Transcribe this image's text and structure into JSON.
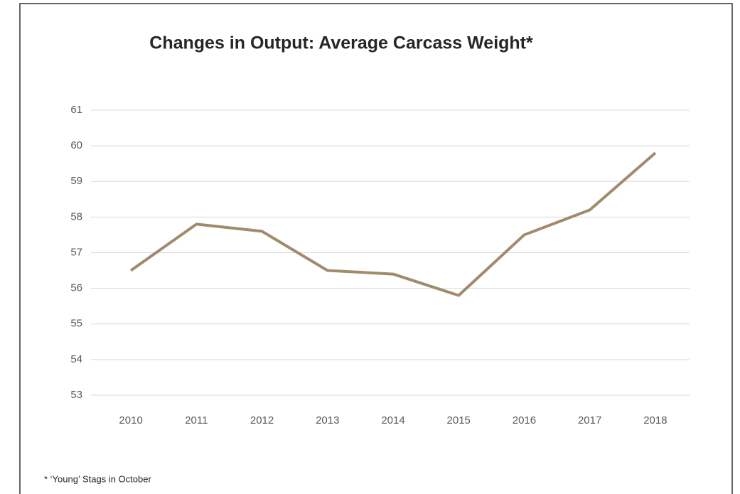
{
  "chart_data": {
    "type": "line",
    "title": "Changes in Output: Average Carcass Weight*",
    "categories": [
      "2010",
      "2011",
      "2012",
      "2013",
      "2014",
      "2015",
      "2016",
      "2017",
      "2018"
    ],
    "series": [
      {
        "name": "Average Carcass Weight",
        "color": "#a08c6c",
        "values": [
          56.5,
          57.8,
          57.6,
          56.5,
          56.4,
          55.8,
          57.5,
          58.2,
          59.8
        ]
      }
    ],
    "ylim": [
      53,
      61
    ],
    "yticks": [
      53,
      54,
      55,
      56,
      57,
      58,
      59,
      60,
      61
    ],
    "grid": true,
    "footnote": "* ‘Young’ Stags in October"
  }
}
